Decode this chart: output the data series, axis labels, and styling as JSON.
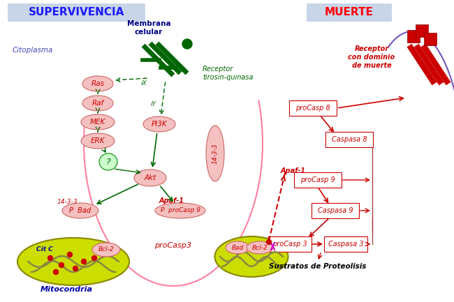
{
  "bg_color": "#ffffff",
  "left_title": "SUPERVIVENCIA",
  "right_title": "MUERTE",
  "left_title_bg": "#c8d4e8",
  "right_title_bg": "#c8d4e8",
  "left_title_color": "#1a1aff",
  "right_title_color": "#ff0000",
  "membrana_label": "Membrana\ncelular",
  "receptor_label": "Receptor\ntirosin-quinasa",
  "citoplasma_label": "Citoplasma",
  "mitocondria_label": "Mitocondria",
  "right_receptor_label": "Receptor\ncon dominio\nde muerte",
  "node_fill": "#f5c0c0",
  "node_border": "#cc6666",
  "green_color": "#006600",
  "red_color": "#cc0000",
  "pink_curve_color": "#ff80a0",
  "purple_curve_color": "#7755bb",
  "mito_fill": "#ccdd00",
  "mito_border": "#888800",
  "mito_inner_color": "#888844",
  "dot_color": "#cc0000"
}
